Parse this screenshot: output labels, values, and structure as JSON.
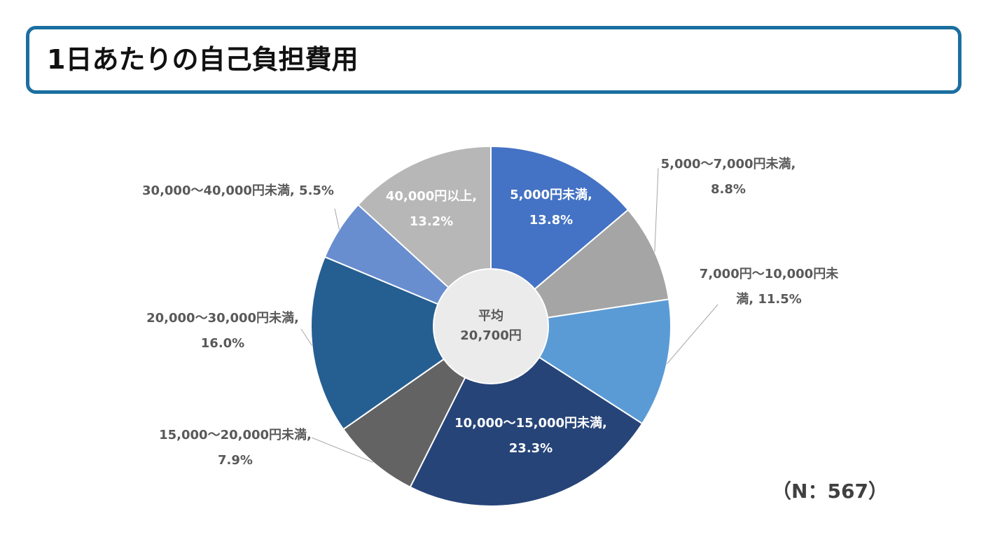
{
  "chart_data": {
    "type": "pie",
    "title": "1日あたりの自己負担費用",
    "values": [
      13.8,
      8.8,
      11.5,
      23.3,
      7.9,
      16.0,
      5.5,
      13.2
    ],
    "value_labels": [
      "5,000円未満, 13.8%",
      "5,000～7,000円未満, 8.8%",
      "7,000円～10,000円未満, 11.5%",
      "10,000～15,000円未満, 23.3%",
      "15,000～20,000円未満, 7.9%",
      "20,000～30,000円未満, 16.0%",
      "30,000～40,000円未満, 5.5%",
      "40,000円以上, 13.2%"
    ],
    "colors": [
      "#4472c4",
      "#a5a5a5",
      "#5b9bd5",
      "#264478",
      "#636363",
      "#255e91",
      "#698ed0",
      "#b7b7b7"
    ],
    "center_label": [
      "平均",
      "20,700円"
    ],
    "note": "（N：567）"
  }
}
